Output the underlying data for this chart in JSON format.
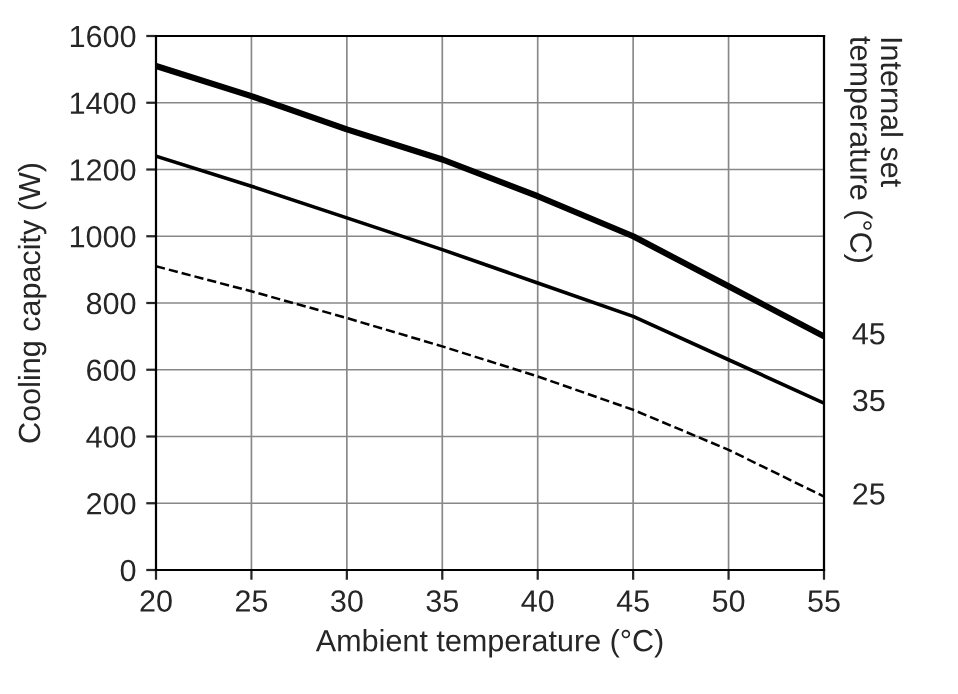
{
  "chart_data": {
    "type": "line",
    "xlabel": "Ambient temperature (°C)",
    "ylabel": "Cooling capacity (W)",
    "y2label": "Internal set\ntemperature (°C)",
    "x": [
      20,
      25,
      30,
      35,
      40,
      45,
      50,
      55
    ],
    "series": [
      {
        "name": "45",
        "color": "#000000",
        "line_style": "solid",
        "values": [
          1510,
          1420,
          1320,
          1230,
          1120,
          1000,
          850,
          700
        ]
      },
      {
        "name": "35",
        "color": "#000000",
        "line_style": "solid",
        "values": [
          1240,
          1150,
          1055,
          960,
          860,
          760,
          630,
          500
        ]
      },
      {
        "name": "25",
        "color": "#000000",
        "line_style": "dashed",
        "values": [
          910,
          835,
          755,
          670,
          580,
          480,
          360,
          220
        ]
      }
    ],
    "xlim": [
      20,
      55
    ],
    "xticks": [
      20,
      25,
      30,
      35,
      40,
      45,
      50,
      55
    ],
    "ylim": [
      0,
      1600
    ],
    "yticks": [
      0,
      200,
      400,
      600,
      800,
      1000,
      1200,
      1400,
      1600
    ],
    "grid": true,
    "legend": false,
    "marker": "none"
  }
}
